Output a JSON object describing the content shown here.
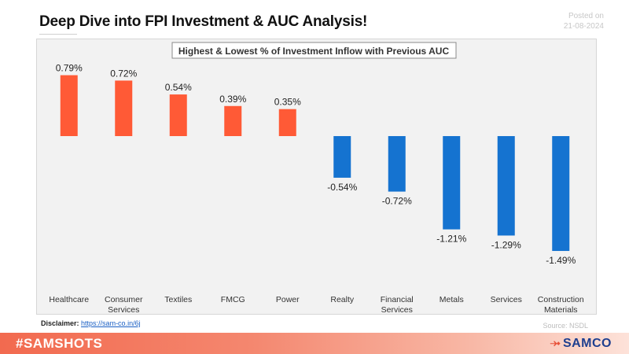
{
  "header": {
    "title": "Deep Dive into FPI Investment & AUC Analysis!",
    "posted_label": "Posted on",
    "posted_date": "21-08-2024"
  },
  "chart_data": {
    "type": "bar",
    "title": "Highest & Lowest % of Investment Inflow with Previous AUC",
    "categories": [
      "Healthcare",
      "Consumer Services",
      "Textiles",
      "FMCG",
      "Power",
      "Realty",
      "Financial Services",
      "Metals",
      "Services",
      "Construction Materials"
    ],
    "category_lines": [
      [
        "Healthcare"
      ],
      [
        "Consumer",
        "Services"
      ],
      [
        "Textiles"
      ],
      [
        "FMCG"
      ],
      [
        "Power"
      ],
      [
        "Realty"
      ],
      [
        "Financial",
        "Services"
      ],
      [
        "Metals"
      ],
      [
        "Services"
      ],
      [
        "Construction",
        "Materials"
      ]
    ],
    "values": [
      0.79,
      0.72,
      0.54,
      0.39,
      0.35,
      -0.54,
      -0.72,
      -1.21,
      -1.29,
      -1.49
    ],
    "data_labels": [
      "0.79%",
      "0.72%",
      "0.54%",
      "0.39%",
      "0.35%",
      "-0.54%",
      "-0.72%",
      "-1.21%",
      "-1.29%",
      "-1.49%"
    ],
    "colors": {
      "positive": "#ff5a36",
      "negative": "#1573d0"
    },
    "ylim": [
      -1.49,
      0.79
    ],
    "grid": false,
    "legend": "none"
  },
  "footer": {
    "disclaimer_label": "Disclaimer:",
    "disclaimer_link": "https://sam-co.in/6j",
    "source": "Source: NSDL",
    "hashtag": "#SAMSHOTS",
    "brand": "SAMCO",
    "brand_icon": "samco-s-logo-icon"
  }
}
